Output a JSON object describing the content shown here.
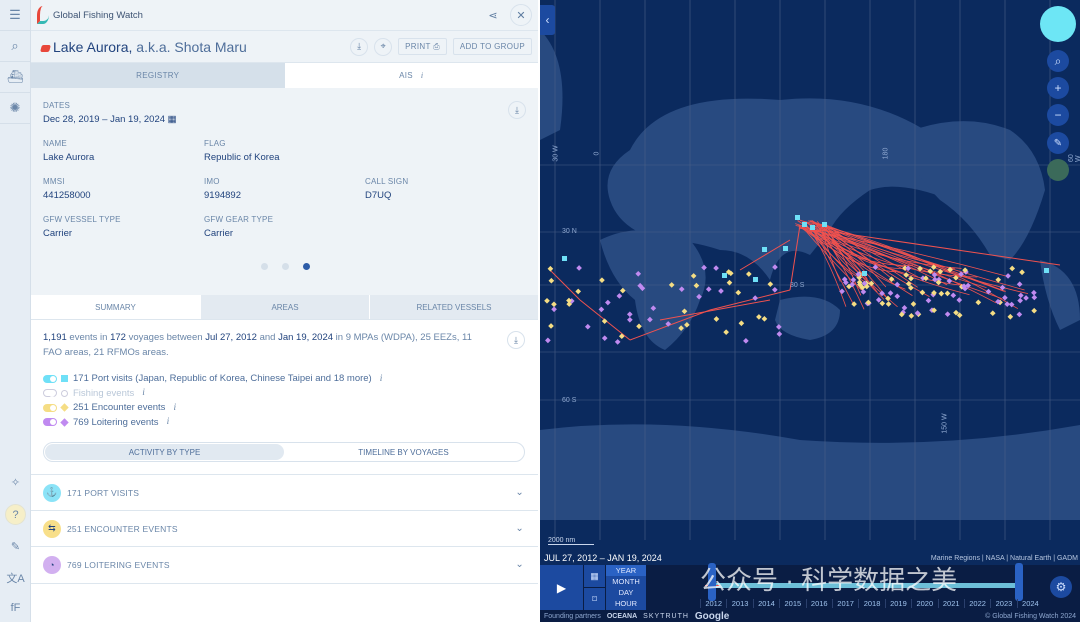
{
  "app": {
    "brand": "Global Fishing Watch"
  },
  "vessel": {
    "name": "Lake Aurora,",
    "aka": " a.k.a. Shota Maru",
    "print": "PRINT",
    "add_to_group": "ADD TO GROUP"
  },
  "tabs": [
    "REGISTRY",
    "AIS"
  ],
  "registry": {
    "dates_label": "DATES",
    "dates": "Dec 28, 2019 – Jan 19, 2024",
    "fields": [
      {
        "label": "NAME",
        "value": "Lake Aurora"
      },
      {
        "label": "FLAG",
        "value": "Republic of Korea"
      },
      {
        "label": "",
        "value": ""
      },
      {
        "label": "MMSI",
        "value": "441258000"
      },
      {
        "label": "IMO",
        "value": "9194892"
      },
      {
        "label": "CALL SIGN",
        "value": "D7UQ"
      },
      {
        "label": "GFW VESSEL TYPE",
        "value": "Carrier"
      },
      {
        "label": "GFW GEAR TYPE",
        "value": "Carrier"
      }
    ],
    "page": 3,
    "pages": 3
  },
  "summary_tabs": [
    "SUMMARY",
    "AREAS",
    "RELATED VESSELS"
  ],
  "summary": {
    "events": "1,191",
    "t1": " events in ",
    "voyages": "172",
    "t2": " voyages between ",
    "start": "Jul 27, 2012",
    "t3": " and ",
    "end": "Jan 19, 2024",
    "t4": " in 9 MPAs (WDPA), 25 EEZs, 11 FAO areas, 21 RFMOs areas."
  },
  "event_types": [
    {
      "label": "171 Port visits (Japan, Republic of Korea, Chinese Taipei and 18 more)",
      "color": "#6fe0f7",
      "on": true
    },
    {
      "label": "Fishing events",
      "color": "#c8d4e4",
      "on": false
    },
    {
      "label": "251 Encounter events",
      "color": "#f5dd84",
      "on": true
    },
    {
      "label": "769 Loitering events",
      "color": "#c08af0",
      "on": true
    }
  ],
  "view_toggle": [
    "ACTIVITY BY TYPE",
    "TIMELINE BY VOYAGES"
  ],
  "accordions": [
    {
      "label": "171 PORT VISITS",
      "icon": "anchor-icon",
      "color": "#8be3f7"
    },
    {
      "label": "251 ENCOUNTER EVENTS",
      "icon": "transfer-icon",
      "color": "#f8df8a"
    },
    {
      "label": "769 LOITERING EVENTS",
      "icon": "loitering-icon",
      "color": "#d2b0f0"
    }
  ],
  "map": {
    "grid_labels": [
      "30 W",
      "0",
      "30 N",
      "30 S",
      "60 S",
      "180",
      "150 W",
      "60 W"
    ],
    "scale": "2000 nm",
    "date_range": "JUL 27, 2012 – JAN 19, 2024",
    "attribution": "Marine Regions | NASA | Natural Earth | GADM",
    "intervals": [
      "YEAR",
      "MONTH",
      "DAY",
      "HOUR"
    ],
    "years": [
      "2012",
      "2013",
      "2014",
      "2015",
      "2016",
      "2017",
      "2018",
      "2019",
      "2020",
      "2021",
      "2022",
      "2023",
      "2024"
    ],
    "partners_label": "Founding partners",
    "partners": [
      "OCEANA",
      "SKYTRUTH",
      "Google"
    ],
    "copyright": "© Global Fishing Watch 2024",
    "watermark": "公众号 · 科学数据之美",
    "track_color": "#f0524f"
  }
}
